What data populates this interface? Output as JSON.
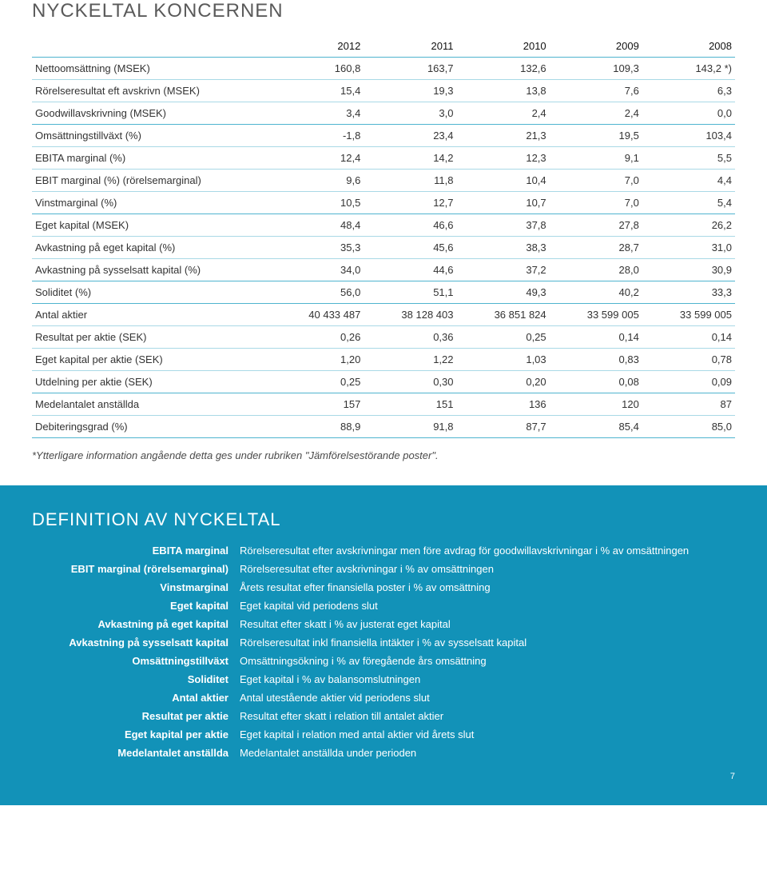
{
  "title": "NYCKELTAL KONCERNEN",
  "years": [
    "2012",
    "2011",
    "2010",
    "2009",
    "2008"
  ],
  "groups": [
    {
      "rows": [
        {
          "label": "Nettoomsättning (MSEK)",
          "vals": [
            "160,8",
            "163,7",
            "132,6",
            "109,3",
            "143,2 *)"
          ]
        },
        {
          "label": "Rörelseresultat eft avskrivn (MSEK)",
          "vals": [
            "15,4",
            "19,3",
            "13,8",
            "7,6",
            "6,3"
          ]
        },
        {
          "label": "Goodwillavskrivning (MSEK)",
          "vals": [
            "3,4",
            "3,0",
            "2,4",
            "2,4",
            "0,0"
          ]
        }
      ]
    },
    {
      "rows": [
        {
          "label": "Omsättningstillväxt (%)",
          "vals": [
            "-1,8",
            "23,4",
            "21,3",
            "19,5",
            "103,4"
          ]
        },
        {
          "label": "EBITA marginal (%)",
          "vals": [
            "12,4",
            "14,2",
            "12,3",
            "9,1",
            "5,5"
          ]
        },
        {
          "label": "EBIT marginal (%) (rörelsemarginal)",
          "vals": [
            "9,6",
            "11,8",
            "10,4",
            "7,0",
            "4,4"
          ]
        },
        {
          "label": "Vinstmarginal (%)",
          "vals": [
            "10,5",
            "12,7",
            "10,7",
            "7,0",
            "5,4"
          ]
        }
      ]
    },
    {
      "rows": [
        {
          "label": "Eget kapital (MSEK)",
          "vals": [
            "48,4",
            "46,6",
            "37,8",
            "27,8",
            "26,2"
          ]
        },
        {
          "label": "Avkastning på eget kapital (%)",
          "vals": [
            "35,3",
            "45,6",
            "38,3",
            "28,7",
            "31,0"
          ]
        },
        {
          "label": "Avkastning på sysselsatt kapital (%)",
          "vals": [
            "34,0",
            "44,6",
            "37,2",
            "28,0",
            "30,9"
          ]
        }
      ]
    },
    {
      "rows": [
        {
          "label": "Soliditet (%)",
          "vals": [
            "56,0",
            "51,1",
            "49,3",
            "40,2",
            "33,3"
          ]
        }
      ]
    },
    {
      "rows": [
        {
          "label": "Antal aktier",
          "vals": [
            "40 433 487",
            "38 128 403",
            "36 851 824",
            "33 599 005",
            "33 599 005"
          ]
        },
        {
          "label": "Resultat per aktie (SEK)",
          "vals": [
            "0,26",
            "0,36",
            "0,25",
            "0,14",
            "0,14"
          ]
        },
        {
          "label": "Eget kapital per aktie (SEK)",
          "vals": [
            "1,20",
            "1,22",
            "1,03",
            "0,83",
            "0,78"
          ]
        },
        {
          "label": "Utdelning per aktie (SEK)",
          "vals": [
            "0,25",
            "0,30",
            "0,20",
            "0,08",
            "0,09"
          ]
        }
      ]
    },
    {
      "rows": [
        {
          "label": "Medelantalet anställda",
          "vals": [
            "157",
            "151",
            "136",
            "120",
            "87"
          ]
        },
        {
          "label": "Debiteringsgrad (%)",
          "vals": [
            "88,9",
            "91,8",
            "87,7",
            "85,4",
            "85,0"
          ]
        }
      ]
    }
  ],
  "footnote": "*Ytterligare information angående detta ges under rubriken \"Jämförelsestörande poster\".",
  "defs_title": "DEFINITION AV NYCKELTAL",
  "defs": [
    {
      "term": "EBITA marginal",
      "def": "Rörelseresultat efter avskrivningar men före avdrag för goodwillavskrivningar i % av omsättningen"
    },
    {
      "term": "EBIT marginal (rörelsemarginal)",
      "def": "Rörelseresultat efter avskrivningar i % av omsättningen"
    },
    {
      "term": "Vinstmarginal",
      "def": "Årets resultat efter finansiella poster i % av omsättning"
    },
    {
      "term": "Eget kapital",
      "def": "Eget kapital vid periodens slut"
    },
    {
      "term": "Avkastning på eget kapital",
      "def": "Resultat efter skatt i % av justerat eget kapital"
    },
    {
      "term": "Avkastning på sysselsatt kapital",
      "def": "Rörelseresultat inkl finansiella intäkter i % av sysselsatt kapital"
    },
    {
      "term": "Omsättningstillväxt",
      "def": "Omsättningsökning i % av föregående års omsättning"
    },
    {
      "term": "Soliditet",
      "def": "Eget kapital i % av balansomslutningen"
    },
    {
      "term": "Antal aktier",
      "def": "Antal utestående aktier vid periodens slut"
    },
    {
      "term": "Resultat per aktie",
      "def": "Resultat efter skatt i relation till antalet aktier"
    },
    {
      "term": "Eget kapital per aktie",
      "def": "Eget kapital i relation med antal aktier vid årets slut"
    },
    {
      "term": "Medelantalet anställda",
      "def": "Medelantalet anställda under perioden"
    }
  ],
  "page_num": "7",
  "colors": {
    "accent": "#1292b8",
    "rule_strong": "#4fb4cf",
    "rule_thin": "#a9d9e6"
  }
}
